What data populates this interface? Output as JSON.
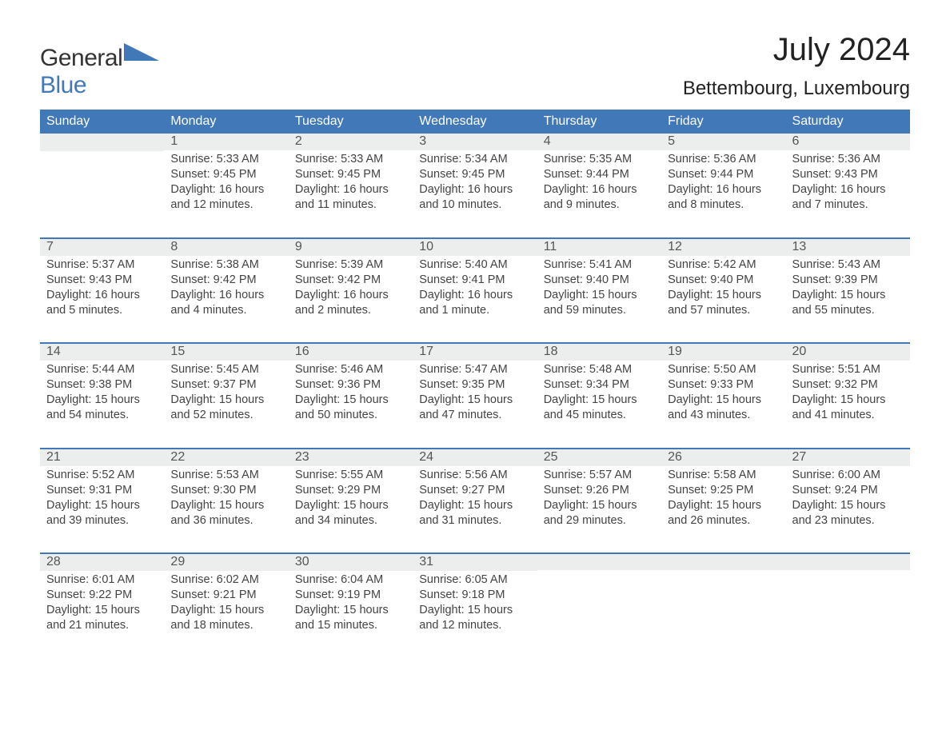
{
  "logo": {
    "main": "General",
    "sub": "Blue"
  },
  "title": "July 2024",
  "location": "Bettembourg, Luxembourg",
  "colors": {
    "header_bg": "#4178b8",
    "header_text": "#ffffff",
    "dayhead_bg": "#eceded",
    "dayhead_border": "#4178b8",
    "body_text": "#444444",
    "title_text": "#222222",
    "background": "#ffffff",
    "logo_accent": "#4178b8"
  },
  "font": {
    "family": "Arial",
    "header_size_pt": 12,
    "body_size_pt": 11,
    "title_size_pt": 30,
    "location_size_pt": 18
  },
  "weekdays": [
    "Sunday",
    "Monday",
    "Tuesday",
    "Wednesday",
    "Thursday",
    "Friday",
    "Saturday"
  ],
  "weeks": [
    [
      null,
      {
        "n": "1",
        "sr": "5:33 AM",
        "ss": "9:45 PM",
        "dl": "16 hours and 12 minutes."
      },
      {
        "n": "2",
        "sr": "5:33 AM",
        "ss": "9:45 PM",
        "dl": "16 hours and 11 minutes."
      },
      {
        "n": "3",
        "sr": "5:34 AM",
        "ss": "9:45 PM",
        "dl": "16 hours and 10 minutes."
      },
      {
        "n": "4",
        "sr": "5:35 AM",
        "ss": "9:44 PM",
        "dl": "16 hours and 9 minutes."
      },
      {
        "n": "5",
        "sr": "5:36 AM",
        "ss": "9:44 PM",
        "dl": "16 hours and 8 minutes."
      },
      {
        "n": "6",
        "sr": "5:36 AM",
        "ss": "9:43 PM",
        "dl": "16 hours and 7 minutes."
      }
    ],
    [
      {
        "n": "7",
        "sr": "5:37 AM",
        "ss": "9:43 PM",
        "dl": "16 hours and 5 minutes."
      },
      {
        "n": "8",
        "sr": "5:38 AM",
        "ss": "9:42 PM",
        "dl": "16 hours and 4 minutes."
      },
      {
        "n": "9",
        "sr": "5:39 AM",
        "ss": "9:42 PM",
        "dl": "16 hours and 2 minutes."
      },
      {
        "n": "10",
        "sr": "5:40 AM",
        "ss": "9:41 PM",
        "dl": "16 hours and 1 minute."
      },
      {
        "n": "11",
        "sr": "5:41 AM",
        "ss": "9:40 PM",
        "dl": "15 hours and 59 minutes."
      },
      {
        "n": "12",
        "sr": "5:42 AM",
        "ss": "9:40 PM",
        "dl": "15 hours and 57 minutes."
      },
      {
        "n": "13",
        "sr": "5:43 AM",
        "ss": "9:39 PM",
        "dl": "15 hours and 55 minutes."
      }
    ],
    [
      {
        "n": "14",
        "sr": "5:44 AM",
        "ss": "9:38 PM",
        "dl": "15 hours and 54 minutes."
      },
      {
        "n": "15",
        "sr": "5:45 AM",
        "ss": "9:37 PM",
        "dl": "15 hours and 52 minutes."
      },
      {
        "n": "16",
        "sr": "5:46 AM",
        "ss": "9:36 PM",
        "dl": "15 hours and 50 minutes."
      },
      {
        "n": "17",
        "sr": "5:47 AM",
        "ss": "9:35 PM",
        "dl": "15 hours and 47 minutes."
      },
      {
        "n": "18",
        "sr": "5:48 AM",
        "ss": "9:34 PM",
        "dl": "15 hours and 45 minutes."
      },
      {
        "n": "19",
        "sr": "5:50 AM",
        "ss": "9:33 PM",
        "dl": "15 hours and 43 minutes."
      },
      {
        "n": "20",
        "sr": "5:51 AM",
        "ss": "9:32 PM",
        "dl": "15 hours and 41 minutes."
      }
    ],
    [
      {
        "n": "21",
        "sr": "5:52 AM",
        "ss": "9:31 PM",
        "dl": "15 hours and 39 minutes."
      },
      {
        "n": "22",
        "sr": "5:53 AM",
        "ss": "9:30 PM",
        "dl": "15 hours and 36 minutes."
      },
      {
        "n": "23",
        "sr": "5:55 AM",
        "ss": "9:29 PM",
        "dl": "15 hours and 34 minutes."
      },
      {
        "n": "24",
        "sr": "5:56 AM",
        "ss": "9:27 PM",
        "dl": "15 hours and 31 minutes."
      },
      {
        "n": "25",
        "sr": "5:57 AM",
        "ss": "9:26 PM",
        "dl": "15 hours and 29 minutes."
      },
      {
        "n": "26",
        "sr": "5:58 AM",
        "ss": "9:25 PM",
        "dl": "15 hours and 26 minutes."
      },
      {
        "n": "27",
        "sr": "6:00 AM",
        "ss": "9:24 PM",
        "dl": "15 hours and 23 minutes."
      }
    ],
    [
      {
        "n": "28",
        "sr": "6:01 AM",
        "ss": "9:22 PM",
        "dl": "15 hours and 21 minutes."
      },
      {
        "n": "29",
        "sr": "6:02 AM",
        "ss": "9:21 PM",
        "dl": "15 hours and 18 minutes."
      },
      {
        "n": "30",
        "sr": "6:04 AM",
        "ss": "9:19 PM",
        "dl": "15 hours and 15 minutes."
      },
      {
        "n": "31",
        "sr": "6:05 AM",
        "ss": "9:18 PM",
        "dl": "15 hours and 12 minutes."
      },
      null,
      null,
      null
    ]
  ],
  "labels": {
    "sunrise": "Sunrise: ",
    "sunset": "Sunset: ",
    "daylight": "Daylight: "
  }
}
